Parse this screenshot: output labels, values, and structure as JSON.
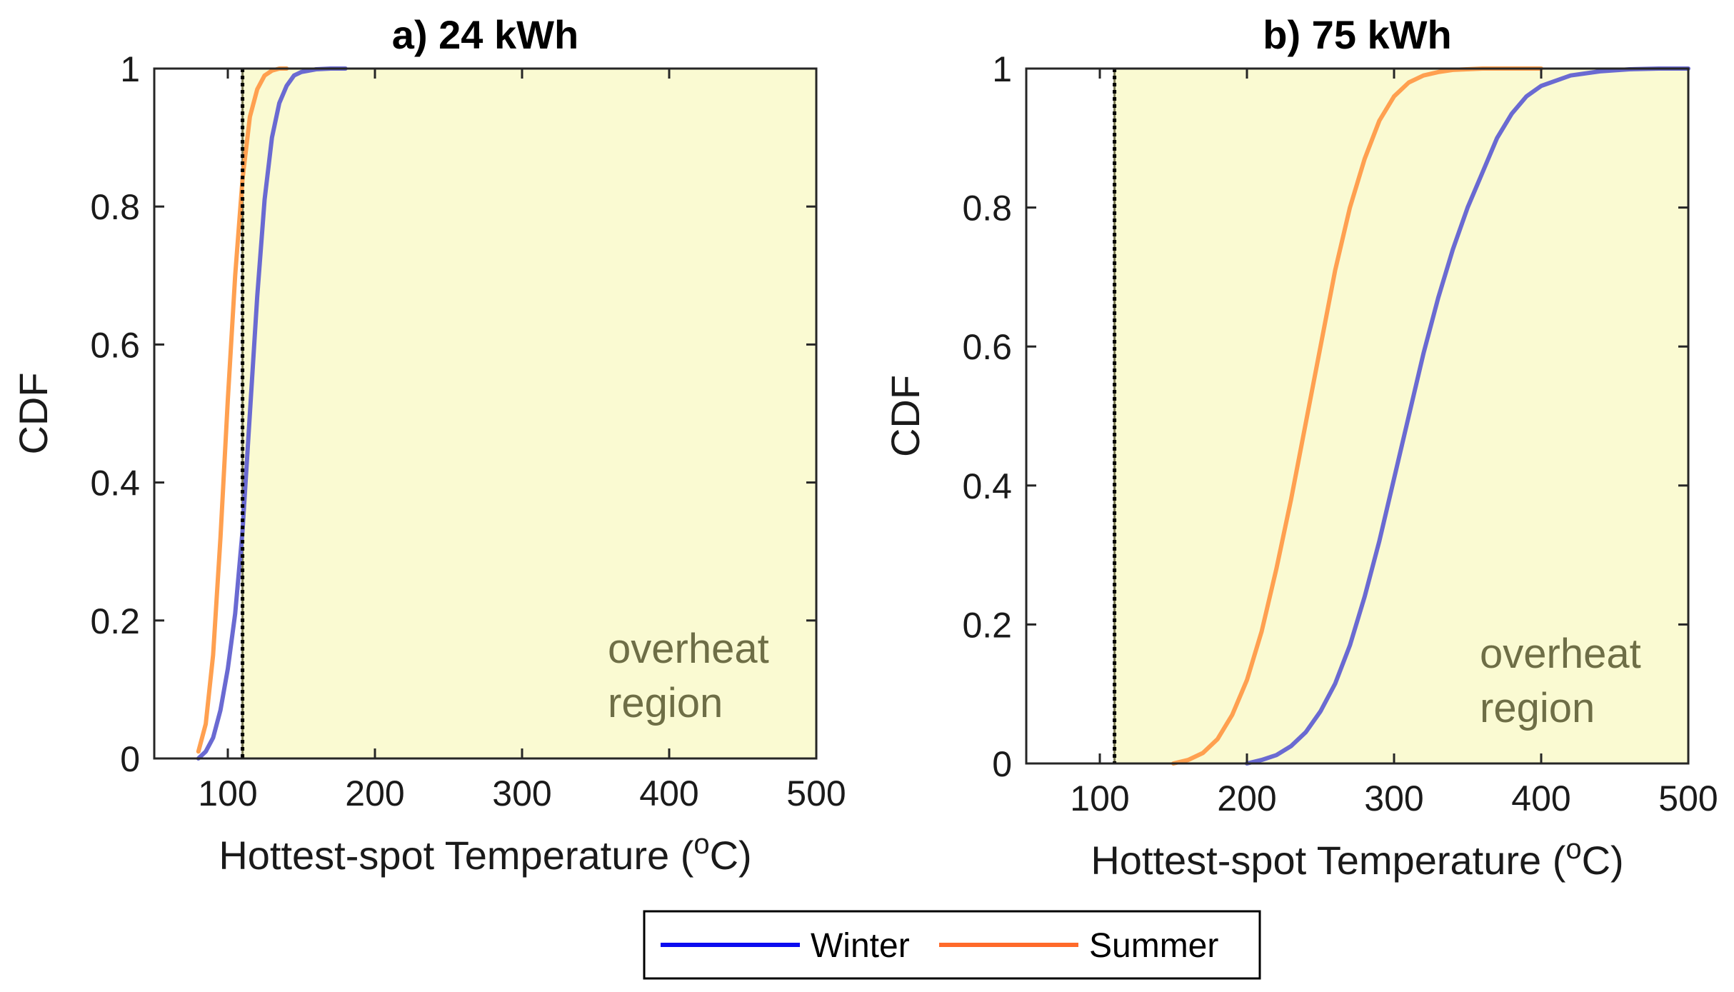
{
  "chart_data": [
    {
      "type": "line",
      "title": "a) 24 kWh",
      "xlabel_main": "Hottest-spot Temperature (",
      "xlabel_sup": "o",
      "xlabel_end": "C)",
      "ylabel": "CDF",
      "xlim": [
        50,
        500
      ],
      "ylim": [
        0,
        1
      ],
      "xticks": [
        100,
        200,
        300,
        400,
        500
      ],
      "yticks": [
        0,
        0.2,
        0.4,
        0.6,
        0.8,
        1
      ],
      "ytick_labels": [
        "0",
        "0.2",
        "0.4",
        "0.6",
        "0.8",
        "1"
      ],
      "threshold": 110,
      "overheat_region": {
        "from": 110,
        "to": 500,
        "label_line1": "overheat",
        "label_line2": "region"
      },
      "series": [
        {
          "name": "Winter",
          "x": [
            80,
            85,
            90,
            95,
            100,
            105,
            110,
            115,
            120,
            125,
            130,
            135,
            140,
            145,
            150,
            160,
            170,
            180
          ],
          "values": [
            0.0,
            0.01,
            0.03,
            0.07,
            0.13,
            0.21,
            0.33,
            0.5,
            0.67,
            0.81,
            0.9,
            0.95,
            0.975,
            0.99,
            0.995,
            0.999,
            1.0,
            1.0
          ]
        },
        {
          "name": "Summer",
          "x": [
            80,
            85,
            90,
            95,
            100,
            105,
            110,
            115,
            120,
            125,
            130,
            135,
            140
          ],
          "values": [
            0.01,
            0.05,
            0.15,
            0.32,
            0.52,
            0.7,
            0.84,
            0.93,
            0.97,
            0.99,
            0.997,
            1.0,
            1.0
          ]
        }
      ]
    },
    {
      "type": "line",
      "title": "b) 75 kWh",
      "xlabel_main": "Hottest-spot Temperature (",
      "xlabel_sup": "o",
      "xlabel_end": "C)",
      "ylabel": "CDF",
      "xlim": [
        50,
        500
      ],
      "ylim": [
        0,
        1
      ],
      "xticks": [
        100,
        200,
        300,
        400,
        500
      ],
      "yticks": [
        0,
        0.2,
        0.4,
        0.6,
        0.8,
        1
      ],
      "ytick_labels": [
        "0",
        "0.2",
        "0.4",
        "0.6",
        "0.8",
        "1"
      ],
      "threshold": 110,
      "overheat_region": {
        "from": 110,
        "to": 500,
        "label_line1": "overheat",
        "label_line2": "region"
      },
      "series": [
        {
          "name": "Winter",
          "x": [
            200,
            210,
            220,
            230,
            240,
            250,
            260,
            270,
            280,
            290,
            300,
            310,
            320,
            330,
            340,
            350,
            360,
            370,
            380,
            390,
            400,
            420,
            440,
            460,
            480,
            500
          ],
          "values": [
            0.0,
            0.005,
            0.012,
            0.025,
            0.045,
            0.075,
            0.115,
            0.17,
            0.24,
            0.32,
            0.41,
            0.5,
            0.59,
            0.67,
            0.74,
            0.8,
            0.85,
            0.9,
            0.935,
            0.96,
            0.975,
            0.99,
            0.996,
            0.999,
            1.0,
            1.0
          ]
        },
        {
          "name": "Summer",
          "x": [
            150,
            160,
            170,
            180,
            190,
            200,
            210,
            220,
            230,
            240,
            250,
            260,
            270,
            280,
            290,
            300,
            310,
            320,
            330,
            340,
            360,
            380,
            400
          ],
          "values": [
            0.0,
            0.005,
            0.015,
            0.035,
            0.07,
            0.12,
            0.19,
            0.28,
            0.38,
            0.49,
            0.6,
            0.71,
            0.8,
            0.87,
            0.925,
            0.96,
            0.98,
            0.99,
            0.995,
            0.998,
            1.0,
            1.0,
            1.0
          ]
        }
      ]
    }
  ],
  "legend": {
    "items": [
      {
        "label": "Winter",
        "color": "#0b0bf0"
      },
      {
        "label": "Summer",
        "color": "#ff6a2a"
      }
    ]
  },
  "colors": {
    "region_fill": "#fafad2",
    "region_border": "#7a7a55",
    "region_text": "#6e6e46",
    "winter_line": "#6a6ad2",
    "summer_line": "#ffa050",
    "threshold": "#000000",
    "axis": "#262626"
  }
}
